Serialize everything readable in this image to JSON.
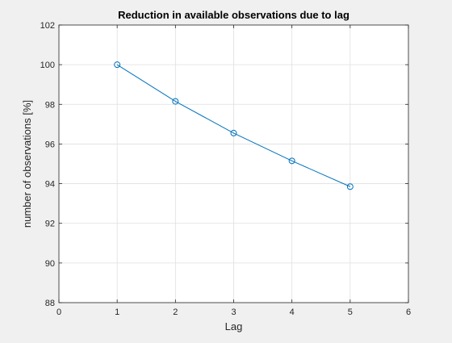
{
  "chart_data": {
    "type": "line",
    "title": "Reduction in available observations due to lag",
    "xlabel": "Lag",
    "ylabel": "number of observations [%]",
    "xlim": [
      0,
      6
    ],
    "ylim": [
      88,
      102
    ],
    "xticks": [
      0,
      1,
      2,
      3,
      4,
      5,
      6
    ],
    "yticks": [
      88,
      90,
      92,
      94,
      96,
      98,
      100,
      102
    ],
    "grid": true,
    "marker": "circle",
    "series": [
      {
        "color": "#0072bd",
        "x": [
          1,
          2,
          3,
          4,
          5
        ],
        "y": [
          100,
          98.15,
          96.55,
          95.15,
          93.85
        ]
      }
    ]
  }
}
